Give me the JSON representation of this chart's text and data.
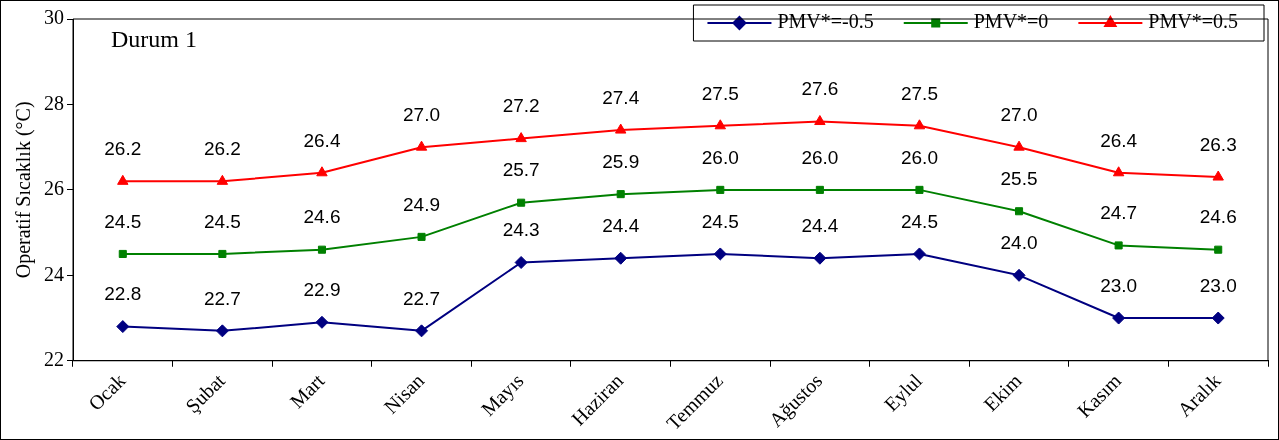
{
  "chart_data": {
    "type": "line",
    "ylabel": "Operatif Sıcaklık (°C)",
    "annotations": [
      "Durum 1"
    ],
    "categories": [
      "Ocak",
      "Şubat",
      "Mart",
      "Nisan",
      "Mayıs",
      "Haziran",
      "Temmuz",
      "Ağustos",
      "Eylul",
      "Ekim",
      "Kasım",
      "Aralık"
    ],
    "ylim": [
      22,
      30
    ],
    "yticks": [
      22,
      24,
      26,
      28,
      30
    ],
    "grid": false,
    "legend": "top right",
    "series": [
      {
        "name": "PMV*=-0.5",
        "color": "#000080",
        "marker": "diamond",
        "values": [
          22.8,
          22.7,
          22.9,
          22.7,
          24.3,
          24.4,
          24.5,
          24.4,
          24.5,
          24.0,
          23.0,
          23.0
        ],
        "value_labels": [
          "22.8",
          "22.7",
          "22.9",
          "22.7",
          "24.3",
          "24.4",
          "24.5",
          "24.4",
          "24.5",
          "24.0",
          "23.0",
          "23.0"
        ]
      },
      {
        "name": "PMV*=0",
        "color": "#008000",
        "marker": "square",
        "values": [
          24.5,
          24.5,
          24.6,
          24.9,
          25.7,
          25.9,
          26.0,
          26.0,
          26.0,
          25.5,
          24.7,
          24.6
        ],
        "value_labels": [
          "24.5",
          "24.5",
          "24.6",
          "24.9",
          "25.7",
          "25.9",
          "26.0",
          "26.0",
          "26.0",
          "25.5",
          "24.7",
          "24.6"
        ]
      },
      {
        "name": "PMV*=0.5",
        "color": "#ff0000",
        "marker": "triangle",
        "values": [
          26.2,
          26.2,
          26.4,
          27.0,
          27.2,
          27.4,
          27.5,
          27.6,
          27.5,
          27.0,
          26.4,
          26.3
        ],
        "value_labels": [
          "26.2",
          "26.2",
          "26.4",
          "27.0",
          "27.2",
          "27.4",
          "27.5",
          "27.6",
          "27.5",
          "27.0",
          "26.4",
          "26.3"
        ]
      }
    ]
  }
}
